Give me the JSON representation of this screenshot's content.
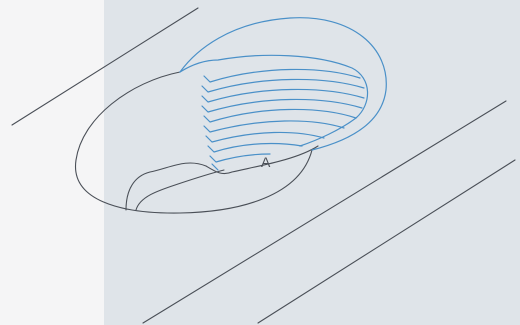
{
  "diagram": {
    "labels": {
      "feature": "A"
    },
    "colors": {
      "background": "#f5f5f6",
      "panel": "#dfe4e9",
      "outline": "#4a4f57",
      "thread": "#4a90c8"
    }
  }
}
